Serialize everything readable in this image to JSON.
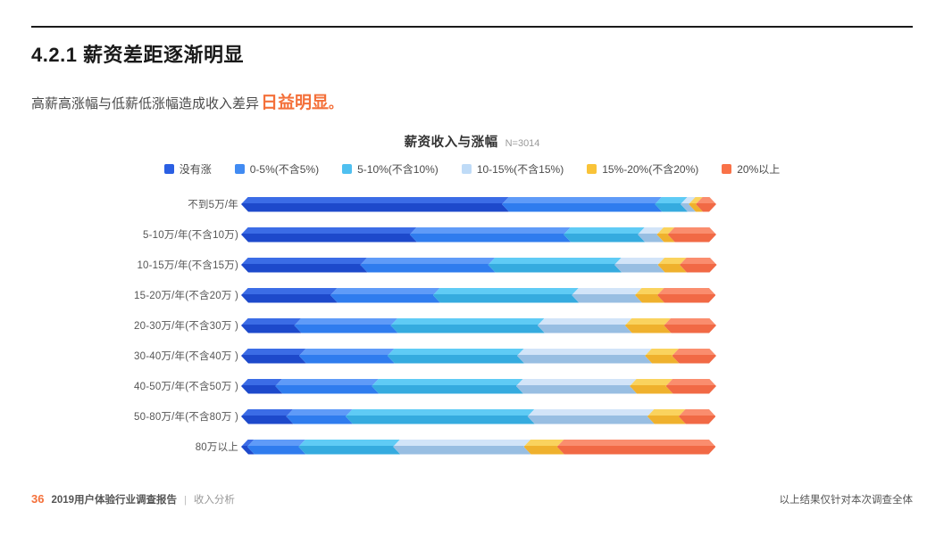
{
  "page": {
    "title": "4.2.1 薪资差距逐渐明显",
    "subtitle_prefix": "高薪高涨幅与低薪低涨幅造成收入差异",
    "subtitle_highlight": "日益明显",
    "subtitle_suffix": "。",
    "accent_color": "#F4703A"
  },
  "chart_data": {
    "type": "bar",
    "orientation": "horizontal",
    "stacked": true,
    "unit": "percent",
    "title": "薪资收入与涨幅",
    "sample_note": "N=3014",
    "legend_position": "top",
    "grid": false,
    "xlim": [
      0,
      100
    ],
    "categories": [
      "不到5万/年",
      "5-10万/年(不含10万)",
      "10-15万/年(不含15万)",
      "15-20万/年(不含20万 )",
      "20-30万/年(不含30万 )",
      "30-40万/年(不含40万 )",
      "40-50万/年(不含50万 )",
      "50-80万/年(不含80万 )",
      "80万以上"
    ],
    "series": [
      {
        "name": "没有涨",
        "color": "#2B5FE3",
        "color_top": "#3B6CE6",
        "color_bottom": "#1D49CB",
        "values": [
          56.4,
          37.0,
          26.6,
          20.3,
          12.7,
          13.7,
          8.7,
          11.0,
          2.8
        ]
      },
      {
        "name": "0-5%(不含5%)",
        "color": "#418BF2",
        "color_top": "#5F9BF8",
        "color_bottom": "#2F7CEE",
        "values": [
          32.2,
          32.4,
          26.9,
          21.6,
          20.3,
          18.6,
          20.3,
          12.5,
          10.8
        ]
      },
      {
        "name": "5-10%(不含10%)",
        "color": "#4FC0F0",
        "color_top": "#5FCBF5",
        "color_bottom": "#35ABDF",
        "values": [
          5.4,
          15.6,
          26.6,
          29.2,
          30.9,
          27.3,
          30.4,
          38.3,
          19.9
        ]
      },
      {
        "name": "10-15%(不含15%)",
        "color": "#BFDBF7",
        "color_top": "#D2E4F8",
        "color_bottom": "#98BEE2",
        "values": [
          1.7,
          4.0,
          9.1,
          13.3,
          18.4,
          26.9,
          23.9,
          25.2,
          27.5
        ]
      },
      {
        "name": "15%-20%(不含20%)",
        "color": "#F9C338",
        "color_top": "#FAD35E",
        "color_bottom": "#EFB12D",
        "values": [
          1.5,
          2.3,
          4.6,
          4.7,
          8.2,
          5.7,
          7.6,
          6.6,
          7.0
        ]
      },
      {
        "name": "20%以上",
        "color": "#F97248",
        "color_top": "#FA8D6E",
        "color_bottom": "#F16945",
        "values": [
          2.8,
          8.7,
          6.3,
          10.8,
          9.5,
          7.8,
          9.1,
          6.3,
          31.9
        ]
      }
    ]
  },
  "footer": {
    "page_number": "36",
    "report_title": "2019用户体验行业调查报告",
    "separator": "|",
    "section": "收入分析",
    "right_note": "以上结果仅针对本次调查全体"
  }
}
